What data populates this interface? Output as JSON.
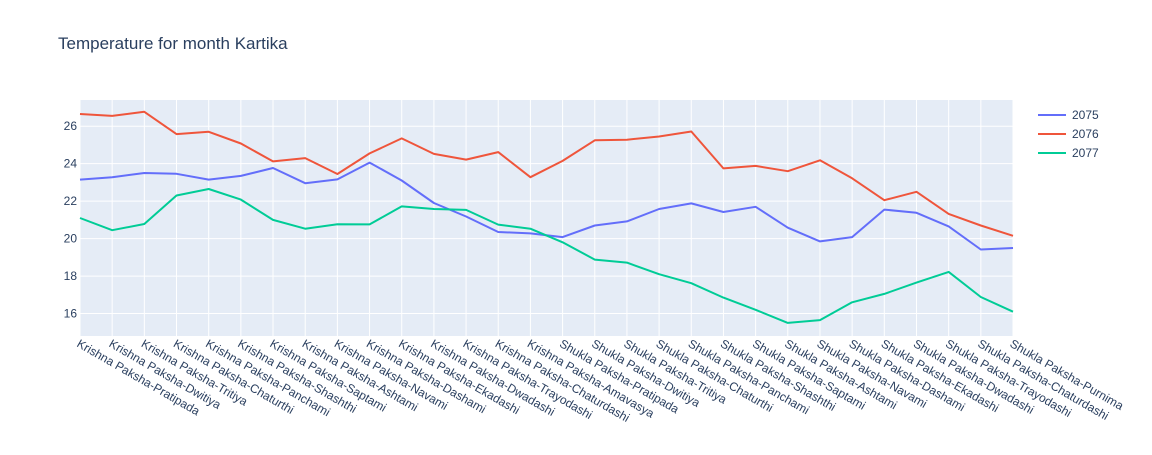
{
  "chart_data": {
    "type": "line",
    "title": "Temperature for month Kartika",
    "xlabel": "",
    "ylabel": "",
    "ylim": [
      14.8,
      27.4
    ],
    "yticks": [
      16,
      18,
      20,
      22,
      24,
      26
    ],
    "grid": true,
    "legend_position": "top-right",
    "categories": [
      "Krishna Paksha-Pratipada",
      "Krishna Paksha-Dwitiya",
      "Krishna Paksha-Tritiya",
      "Krishna Paksha-Chaturthi",
      "Krishna Paksha-Panchami",
      "Krishna Paksha-Shashthi",
      "Krishna Paksha-Saptami",
      "Krishna Paksha-Ashtami",
      "Krishna Paksha-Navami",
      "Krishna Paksha-Dashami",
      "Krishna Paksha-Ekadashi",
      "Krishna Paksha-Dwadashi",
      "Krishna Paksha-Trayodashi",
      "Krishna Paksha-Chaturdashi",
      "Krishna Paksha-Amavasya",
      "Shukla Paksha-Pratipada",
      "Shukla Paksha-Dwitiya",
      "Shukla Paksha-Tritiya",
      "Shukla Paksha-Chaturthi",
      "Shukla Paksha-Panchami",
      "Shukla Paksha-Shashthi",
      "Shukla Paksha-Saptami",
      "Shukla Paksha-Ashtami",
      "Shukla Paksha-Navami",
      "Shukla Paksha-Dashami",
      "Shukla Paksha-Ekadashi",
      "Shukla Paksha-Dwadashi",
      "Shukla Paksha-Trayodashi",
      "Shukla Paksha-Chaturdashi",
      "Shukla Paksha-Purnima"
    ],
    "series": [
      {
        "name": "2075",
        "color": "#636efa",
        "values": [
          23.15,
          23.28,
          23.5,
          23.46,
          23.15,
          23.35,
          23.77,
          22.96,
          23.16,
          24.06,
          23.1,
          21.9,
          21.18,
          20.35,
          20.28,
          20.08,
          20.7,
          20.92,
          21.58,
          21.88,
          21.42,
          21.7,
          20.58,
          19.85,
          20.08,
          21.55,
          21.38,
          20.65,
          19.42,
          19.5
        ]
      },
      {
        "name": "2076",
        "color": "#ef553b",
        "values": [
          26.65,
          26.55,
          26.77,
          25.58,
          25.7,
          25.08,
          24.12,
          24.3,
          23.45,
          24.55,
          25.35,
          24.52,
          24.22,
          24.62,
          23.28,
          24.15,
          25.25,
          25.28,
          25.45,
          25.72,
          23.75,
          23.88,
          23.6,
          24.18,
          23.22,
          22.05,
          22.5,
          21.32,
          20.7,
          20.15
        ]
      },
      {
        "name": "2077",
        "color": "#00cc96",
        "values": [
          21.1,
          20.45,
          20.78,
          22.3,
          22.65,
          22.08,
          21.0,
          20.53,
          20.77,
          20.76,
          21.72,
          21.58,
          21.53,
          20.75,
          20.53,
          19.8,
          18.88,
          18.72,
          18.1,
          17.62,
          16.85,
          16.2,
          15.5,
          15.65,
          16.6,
          17.05,
          17.65,
          18.22,
          16.88,
          16.1
        ]
      }
    ]
  }
}
